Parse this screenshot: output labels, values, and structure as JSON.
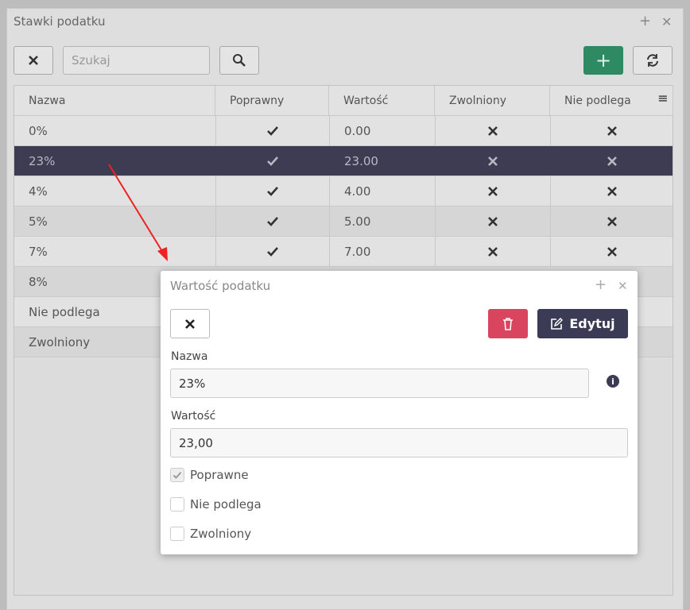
{
  "background_window": {
    "title": "Stawki podatku",
    "search_placeholder": "Szukaj",
    "table": {
      "headers": [
        "Nazwa",
        "Poprawny",
        "Wartość",
        "Zwolniony",
        "Nie podlega"
      ],
      "selected_row": 1,
      "rows": [
        {
          "name": "0%",
          "valid": true,
          "value": "0.00",
          "exempt": false,
          "not_subject": false
        },
        {
          "name": "23%",
          "valid": true,
          "value": "23.00",
          "exempt": false,
          "not_subject": false
        },
        {
          "name": "4%",
          "valid": true,
          "value": "4.00",
          "exempt": false,
          "not_subject": false
        },
        {
          "name": "5%",
          "valid": true,
          "value": "5.00",
          "exempt": false,
          "not_subject": false
        },
        {
          "name": "7%",
          "valid": true,
          "value": "7.00",
          "exempt": false,
          "not_subject": false
        },
        {
          "name": "8%"
        },
        {
          "name": "Nie podlega"
        },
        {
          "name": "Zwolniony"
        }
      ]
    }
  },
  "dialog": {
    "title": "Wartość podatku",
    "edit_button": "Edytuj",
    "fields": [
      {
        "label": "Nazwa",
        "value": "23%"
      },
      {
        "label": "Wartość",
        "value": "23,00"
      }
    ],
    "checkboxes": [
      {
        "label": "Poprawne",
        "checked": true
      },
      {
        "label": "Nie podlega",
        "checked": false
      },
      {
        "label": "Zwolniony",
        "checked": false
      }
    ]
  }
}
